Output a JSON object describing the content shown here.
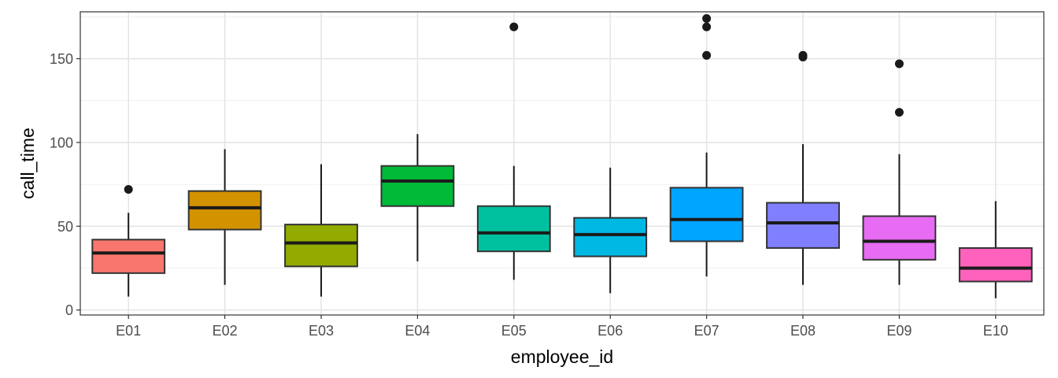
{
  "chart_data": {
    "type": "boxplot",
    "xlabel": "employee_id",
    "ylabel": "call_time",
    "ylim": [
      -3,
      178
    ],
    "y_ticks": [
      0,
      50,
      100,
      150
    ],
    "grid": true,
    "legend": "none",
    "categories": [
      "E01",
      "E02",
      "E03",
      "E04",
      "E05",
      "E06",
      "E07",
      "E08",
      "E09",
      "E10"
    ],
    "boxes": [
      {
        "name": "E01",
        "color": "#F8766D",
        "whisker_low": 8,
        "q1": 22,
        "median": 34,
        "q3": 42,
        "whisker_high": 58,
        "outliers": [
          72
        ]
      },
      {
        "name": "E02",
        "color": "#D39200",
        "whisker_low": 15,
        "q1": 48,
        "median": 61,
        "q3": 71,
        "whisker_high": 96,
        "outliers": []
      },
      {
        "name": "E03",
        "color": "#93AA00",
        "whisker_low": 8,
        "q1": 26,
        "median": 40,
        "q3": 51,
        "whisker_high": 87,
        "outliers": []
      },
      {
        "name": "E04",
        "color": "#00BA38",
        "whisker_low": 29,
        "q1": 62,
        "median": 77,
        "q3": 86,
        "whisker_high": 105,
        "outliers": []
      },
      {
        "name": "E05",
        "color": "#00C19F",
        "whisker_low": 18,
        "q1": 35,
        "median": 46,
        "q3": 62,
        "whisker_high": 86,
        "outliers": [
          169
        ]
      },
      {
        "name": "E06",
        "color": "#00B9E3",
        "whisker_low": 10,
        "q1": 32,
        "median": 45,
        "q3": 55,
        "whisker_high": 85,
        "outliers": []
      },
      {
        "name": "E07",
        "color": "#00A5FF",
        "whisker_low": 20,
        "q1": 41,
        "median": 54,
        "q3": 73,
        "whisker_high": 94,
        "outliers": [
          152,
          169,
          174
        ]
      },
      {
        "name": "E08",
        "color": "#7F7FFF",
        "whisker_low": 15,
        "q1": 37,
        "median": 52,
        "q3": 64,
        "whisker_high": 99,
        "outliers": [
          151,
          152
        ]
      },
      {
        "name": "E09",
        "color": "#E76BF3",
        "whisker_low": 15,
        "q1": 30,
        "median": 41,
        "q3": 56,
        "whisker_high": 93,
        "outliers": [
          118,
          147
        ]
      },
      {
        "name": "E10",
        "color": "#FF62BC",
        "whisker_low": 7,
        "q1": 17,
        "median": 25,
        "q3": 37,
        "whisker_high": 65,
        "outliers": []
      }
    ]
  }
}
